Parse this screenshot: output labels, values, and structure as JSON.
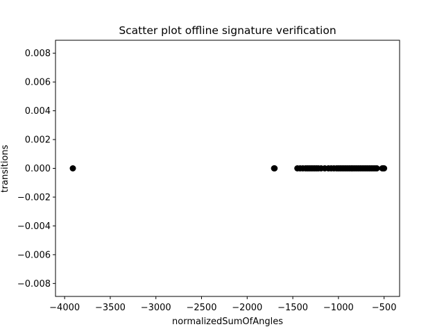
{
  "chart_data": {
    "type": "scatter",
    "title": "Scatter plot offline signature verification",
    "xlabel": "normalizedSumOfAngles",
    "ylabel": "transitions",
    "xlim": [
      -4100,
      -330
    ],
    "ylim": [
      -0.0089,
      0.0089
    ],
    "xticks": [
      -4000,
      -3500,
      -3000,
      -2500,
      -2000,
      -1500,
      -1000,
      -500
    ],
    "xtick_labels": [
      "−4000",
      "−3500",
      "−3000",
      "−2500",
      "−2000",
      "−1500",
      "−1000",
      "−500"
    ],
    "yticks": [
      0.008,
      0.006,
      0.004,
      0.002,
      0.0,
      -0.002,
      -0.004,
      -0.006,
      -0.008
    ],
    "ytick_labels": [
      "0.008",
      "0.006",
      "0.004",
      "0.002",
      "0.000",
      "−0.002",
      "−0.004",
      "−0.006",
      "−0.008"
    ],
    "grid": false,
    "legend": "none",
    "marker_color": "#000000",
    "series": [
      {
        "x": [
          -3910,
          -1705,
          -1700,
          -1450,
          -1420,
          -1390,
          -1360,
          -1340,
          -1320,
          -1300,
          -1280,
          -1260,
          -1240,
          -1220,
          -1190,
          -1150,
          -1110,
          -1080,
          -1050,
          -1020,
          -1000,
          -980,
          -960,
          -940,
          -920,
          -900,
          -880,
          -860,
          -840,
          -820,
          -800,
          -780,
          -760,
          -740,
          -720,
          -700,
          -680,
          -660,
          -640,
          -620,
          -600,
          -580,
          -520,
          -510,
          -500
        ],
        "y": [
          0,
          0,
          0,
          0,
          0,
          0,
          0,
          0,
          0,
          0,
          0,
          0,
          0,
          0,
          0,
          0,
          0,
          0,
          0,
          0,
          0,
          0,
          0,
          0,
          0,
          0,
          0,
          0,
          0,
          0,
          0,
          0,
          0,
          0,
          0,
          0,
          0,
          0,
          0,
          0,
          0,
          0,
          0,
          0,
          0
        ]
      }
    ]
  }
}
